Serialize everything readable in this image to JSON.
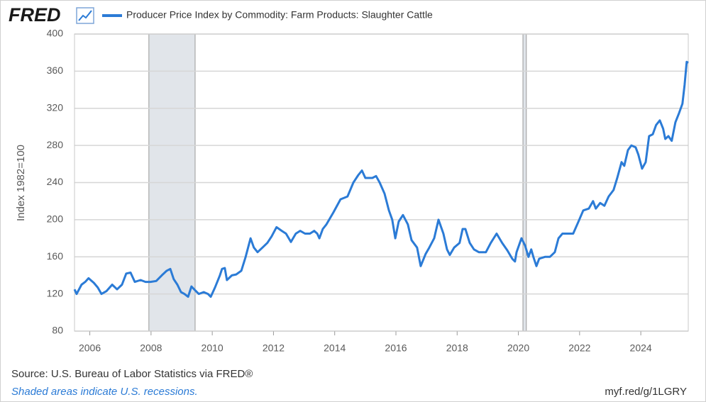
{
  "chart_data": {
    "type": "line",
    "logo": "FRED",
    "legend": "Producer Price Index by Commodity: Farm Products: Slaughter Cattle",
    "ylabel": "Index 1982=100",
    "source": "Source: U.S. Bureau of Labor Statistics via FRED®",
    "note": "Shaded areas indicate U.S. recessions.",
    "link": "myf.red/g/1LGRY",
    "xlim": [
      2005.5,
      2025.55
    ],
    "xticks": [
      2006,
      2008,
      2010,
      2012,
      2014,
      2016,
      2018,
      2020,
      2022,
      2024
    ],
    "ylim": [
      80,
      400
    ],
    "yticks": [
      80,
      120,
      160,
      200,
      240,
      280,
      320,
      360,
      400
    ],
    "grid": true,
    "recessions": [
      [
        2007.93,
        2009.44
      ],
      [
        2020.15,
        2020.26
      ]
    ],
    "series": [
      {
        "name": "Producer Price Index by Commodity: Farm Products: Slaughter Cattle",
        "color": "#2b7bd6",
        "x": [
          2005.5,
          2005.57,
          2005.73,
          2005.85,
          2005.96,
          2006.13,
          2006.26,
          2006.38,
          2006.54,
          2006.73,
          2006.89,
          2007.05,
          2007.19,
          2007.33,
          2007.47,
          2007.66,
          2007.82,
          2007.98,
          2008.17,
          2008.35,
          2008.51,
          2008.63,
          2008.74,
          2008.86,
          2008.98,
          2009.09,
          2009.21,
          2009.32,
          2009.44,
          2009.56,
          2009.72,
          2009.86,
          2009.95,
          2010.09,
          2010.25,
          2010.32,
          2010.41,
          2010.48,
          2010.64,
          2010.78,
          2010.95,
          2011.09,
          2011.25,
          2011.36,
          2011.48,
          2011.64,
          2011.8,
          2011.94,
          2012.1,
          2012.27,
          2012.41,
          2012.57,
          2012.73,
          2012.87,
          2013.03,
          2013.19,
          2013.33,
          2013.43,
          2013.5,
          2013.61,
          2013.73,
          2013.96,
          2014.19,
          2014.42,
          2014.61,
          2014.77,
          2014.89,
          2015.0,
          2015.23,
          2015.35,
          2015.47,
          2015.63,
          2015.77,
          2015.88,
          2015.98,
          2016.09,
          2016.23,
          2016.39,
          2016.51,
          2016.69,
          2016.81,
          2016.97,
          2017.09,
          2017.25,
          2017.39,
          2017.55,
          2017.67,
          2017.76,
          2017.9,
          2018.08,
          2018.18,
          2018.27,
          2018.41,
          2018.55,
          2018.71,
          2018.94,
          2019.1,
          2019.29,
          2019.47,
          2019.64,
          2019.8,
          2019.89,
          2019.94,
          2020.1,
          2020.22,
          2020.33,
          2020.42,
          2020.49,
          2020.59,
          2020.68,
          2020.87,
          2021.03,
          2021.19,
          2021.31,
          2021.44,
          2021.61,
          2021.79,
          2021.95,
          2022.12,
          2022.3,
          2022.44,
          2022.53,
          2022.67,
          2022.81,
          2022.95,
          2023.11,
          2023.23,
          2023.37,
          2023.46,
          2023.58,
          2023.69,
          2023.83,
          2023.92,
          2024.04,
          2024.16,
          2024.27,
          2024.39,
          2024.5,
          2024.62,
          2024.73,
          2024.8,
          2024.9,
          2025.01,
          2025.13,
          2025.25,
          2025.36,
          2025.43,
          2025.5,
          2025.55
        ],
        "values": [
          125,
          120,
          130,
          133,
          137,
          132,
          127,
          120,
          123,
          130,
          125,
          130,
          142,
          143,
          133,
          135,
          133,
          133,
          134,
          140,
          145,
          147,
          136,
          130,
          122,
          120,
          117,
          128,
          124,
          120,
          122,
          120,
          117,
          127,
          140,
          147,
          148,
          135,
          140,
          141,
          145,
          160,
          180,
          170,
          165,
          170,
          175,
          182,
          192,
          188,
          185,
          176,
          185,
          188,
          185,
          185,
          188,
          185,
          180,
          190,
          195,
          208,
          222,
          225,
          240,
          248,
          253,
          245,
          245,
          247,
          240,
          228,
          210,
          200,
          180,
          198,
          205,
          195,
          178,
          170,
          150,
          163,
          170,
          180,
          200,
          185,
          168,
          162,
          170,
          175,
          190,
          190,
          175,
          168,
          165,
          165,
          175,
          185,
          175,
          167,
          158,
          155,
          165,
          180,
          172,
          160,
          168,
          160,
          150,
          158,
          160,
          160,
          165,
          180,
          185,
          185,
          185,
          197,
          210,
          212,
          220,
          212,
          218,
          215,
          225,
          232,
          245,
          262,
          258,
          275,
          280,
          278,
          270,
          255,
          262,
          290,
          292,
          302,
          307,
          298,
          287,
          290,
          285,
          305,
          315,
          325,
          345,
          370,
          369
        ]
      }
    ]
  }
}
